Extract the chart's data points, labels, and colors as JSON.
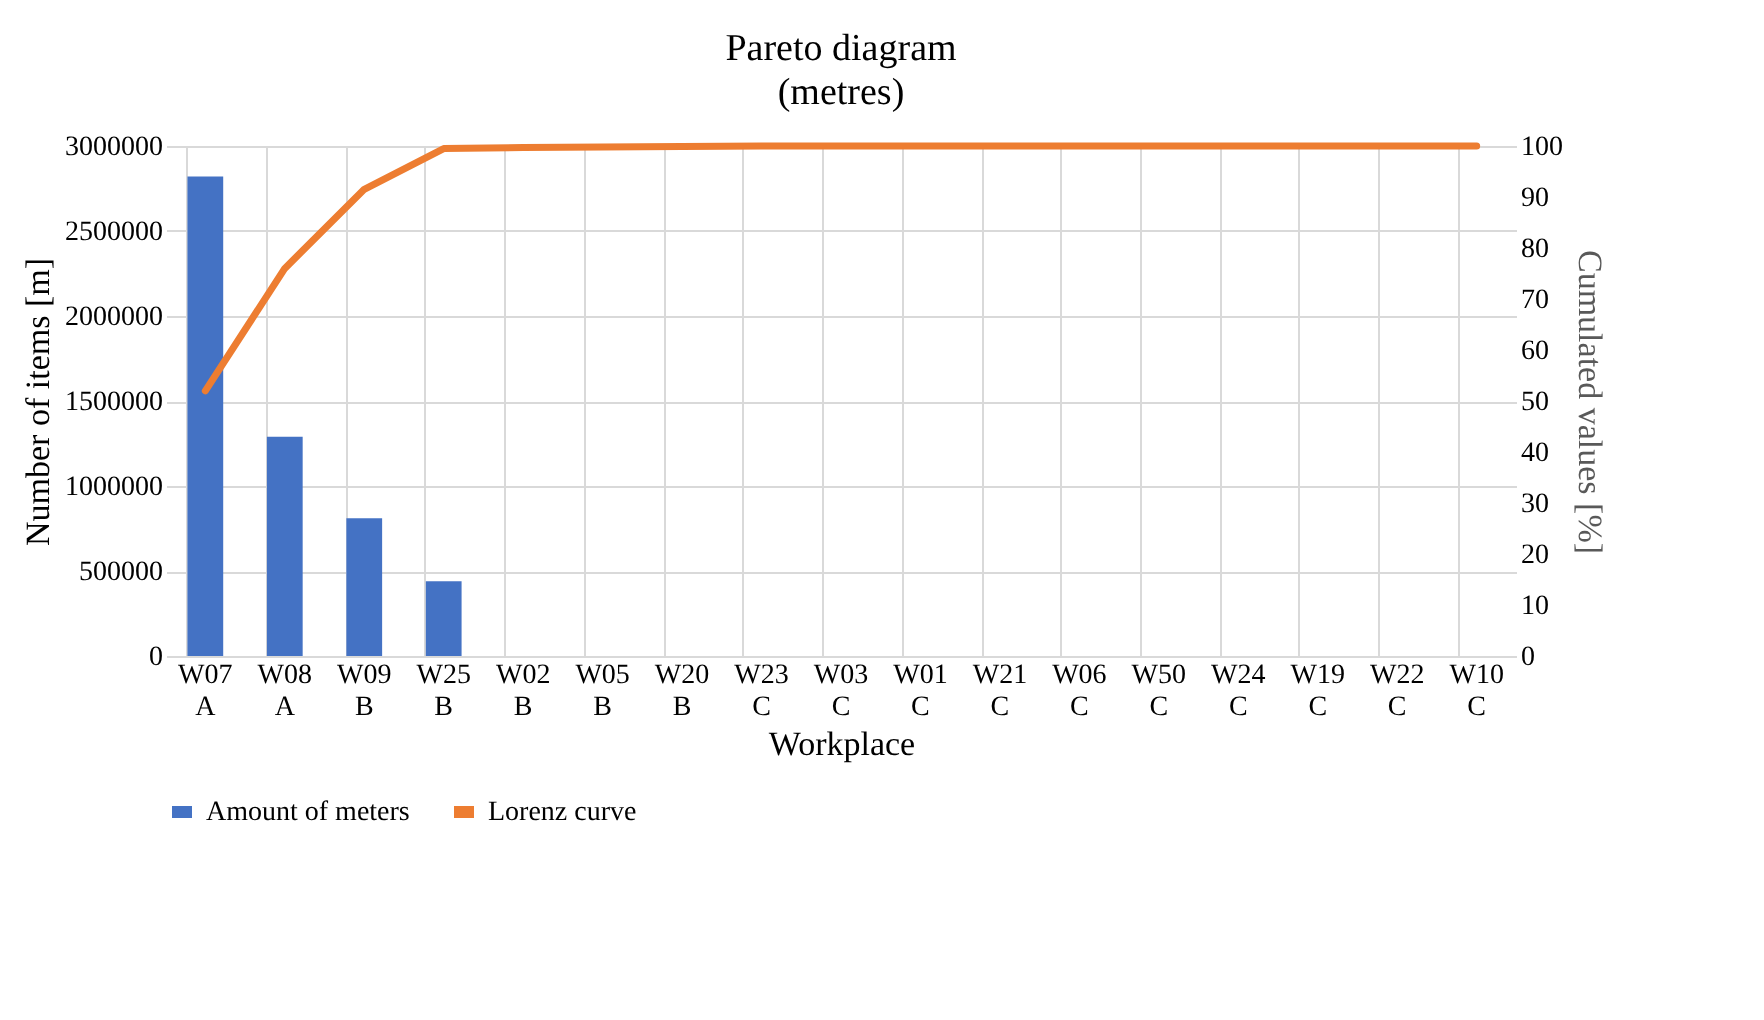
{
  "chart_data": {
    "type": "bar",
    "title": "Pareto diagram",
    "subtitle": "(metres)",
    "xlabel": "Workplace",
    "ylabel": "Number of items  [m]",
    "y2label": "Cumulated values [%]",
    "categories": [
      "W07\nA",
      "W08\nA",
      "W09\nB",
      "W25\nB",
      "W02\nB",
      "W05\nB",
      "W20\nB",
      "W23\nC",
      "W03\nC",
      "W01\nC",
      "W21\nC",
      "W06\nC",
      "W50\nC",
      "W24\nC",
      "W19\nC",
      "W22\nC",
      "W10\nC"
    ],
    "series": [
      {
        "name": "Amount of meters",
        "color": "#4472c4",
        "values": [
          2820000,
          1290000,
          810000,
          440000,
          0,
          0,
          0,
          0,
          0,
          0,
          0,
          0,
          0,
          0,
          0,
          0,
          0
        ]
      },
      {
        "name": "Lorenz curve",
        "type": "line",
        "axis": "y2",
        "color": "#ed7d31",
        "values": [
          52,
          76,
          91.5,
          99.5,
          99.7,
          99.8,
          99.9,
          100,
          100,
          100,
          100,
          100,
          100,
          100,
          100,
          100,
          100
        ]
      }
    ],
    "ylim": [
      0,
      3000000
    ],
    "yticks": [
      0,
      500000,
      1000000,
      1500000,
      2000000,
      2500000,
      3000000
    ],
    "y2lim": [
      0,
      100
    ],
    "y2ticks": [
      0,
      10,
      20,
      30,
      40,
      50,
      60,
      70,
      80,
      90,
      100
    ],
    "grid": true,
    "legend": "bottom"
  }
}
